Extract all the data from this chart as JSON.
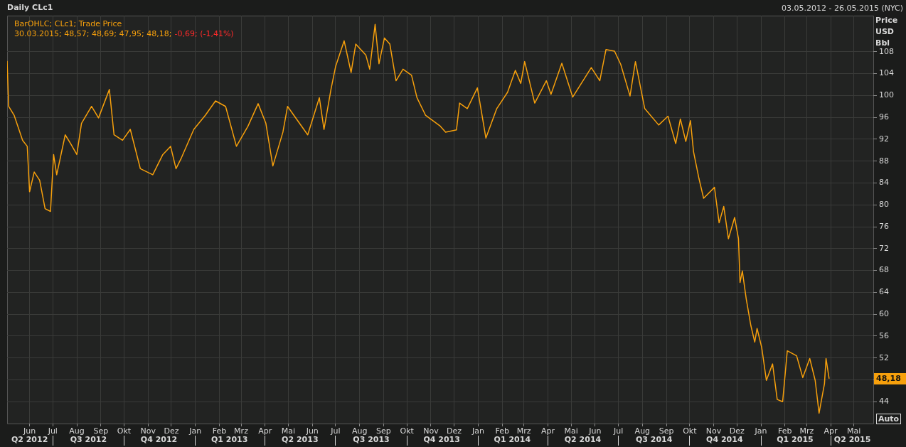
{
  "chart_data": {
    "type": "line",
    "title": "Daily CLc1",
    "subtitle": "03.05.2012 - 26.05.2015 (NYC)",
    "ylabel": "Price USD Bbl",
    "annotations": [
      "BarOHLC; CLc1; Trade Price",
      "30.03.2015; 48,57; 48,69; 47,95; 48,18;",
      "-0,69; (-1,41%)",
      "Auto",
      "48,18"
    ],
    "x": [
      "2012-05-03",
      "2012-05-05",
      "2012-05-12",
      "2012-05-23",
      "2012-05-29",
      "2012-06-01",
      "2012-06-07",
      "2012-06-14",
      "2012-06-21",
      "2012-06-28",
      "2012-07-02",
      "2012-07-06",
      "2012-07-17",
      "2012-07-24",
      "2012-08-01",
      "2012-08-07",
      "2012-08-20",
      "2012-08-29",
      "2012-09-12",
      "2012-09-18",
      "2012-09-29",
      "2012-10-09",
      "2012-10-22",
      "2012-11-07",
      "2012-11-20",
      "2012-11-30",
      "2012-12-07",
      "2012-12-14",
      "2012-12-30",
      "2013-01-14",
      "2013-01-27",
      "2013-02-09",
      "2013-02-23",
      "2013-03-10",
      "2013-03-23",
      "2013-04-02",
      "2013-04-11",
      "2013-04-24",
      "2013-04-30",
      "2013-05-13",
      "2013-05-26",
      "2013-06-10",
      "2013-06-16",
      "2013-06-25",
      "2013-07-01",
      "2013-07-12",
      "2013-07-21",
      "2013-07-27",
      "2013-08-09",
      "2013-08-14",
      "2013-08-21",
      "2013-08-26",
      "2013-09-02",
      "2013-09-09",
      "2013-09-17",
      "2013-09-26",
      "2013-10-07",
      "2013-10-14",
      "2013-10-25",
      "2013-11-13",
      "2013-11-20",
      "2013-12-04",
      "2013-12-08",
      "2013-12-18",
      "2013-12-31",
      "2014-01-11",
      "2014-01-25",
      "2014-02-08",
      "2014-02-18",
      "2014-02-25",
      "2014-03-02",
      "2014-03-15",
      "2014-03-30",
      "2014-04-05",
      "2014-04-19",
      "2014-05-03",
      "2014-05-27",
      "2014-06-07",
      "2014-06-15",
      "2014-06-26",
      "2014-07-04",
      "2014-07-16",
      "2014-07-23",
      "2014-08-04",
      "2014-08-22",
      "2014-09-03",
      "2014-09-13",
      "2014-09-19",
      "2014-09-26",
      "2014-10-02",
      "2014-10-06",
      "2014-10-13",
      "2014-10-19",
      "2014-11-02",
      "2014-11-08",
      "2014-11-14",
      "2014-11-20",
      "2014-11-28",
      "2014-12-03",
      "2014-12-05",
      "2014-12-08",
      "2014-12-13",
      "2014-12-19",
      "2014-12-24",
      "2014-12-27",
      "2015-01-02",
      "2015-01-08",
      "2015-01-16",
      "2015-01-22",
      "2015-01-29",
      "2015-02-04",
      "2015-02-16",
      "2015-02-24",
      "2015-03-05",
      "2015-03-12",
      "2015-03-17",
      "2015-03-24",
      "2015-03-26",
      "2015-03-30"
    ],
    "series": [
      {
        "color": "#f7a00c",
        "values": [
          106.3,
          98,
          96.4,
          91.8,
          90.7,
          82.4,
          86,
          84.5,
          79.3,
          78.8,
          89.2,
          85.5,
          92.8,
          91.2,
          89.2,
          94.9,
          98,
          95.9,
          101.1,
          92.8,
          91.8,
          93.8,
          86.6,
          85.5,
          89.2,
          90.7,
          86.6,
          88.6,
          93.8,
          96.4,
          99,
          98,
          90.7,
          94.4,
          98.5,
          94.9,
          87.1,
          93.3,
          98,
          95.4,
          92.8,
          99.6,
          93.8,
          101.1,
          105.3,
          110,
          104.2,
          109.4,
          107.4,
          104.8,
          113,
          105.8,
          110.5,
          109.4,
          102.7,
          104.8,
          103.7,
          99.6,
          96.4,
          94.4,
          93.3,
          93.7,
          98.6,
          97.6,
          101.4,
          92.2,
          97.6,
          100.6,
          104.6,
          102.2,
          106.2,
          98.6,
          102.7,
          100.2,
          105.9,
          99.7,
          105.1,
          102.7,
          108.4,
          108.1,
          105.7,
          99.9,
          106.2,
          97.6,
          94.6,
          96.2,
          91.2,
          95.7,
          91.6,
          95.4,
          89.7,
          84.8,
          81.2,
          83.2,
          76.7,
          79.7,
          73.8,
          77.7,
          73.8,
          65.8,
          67.9,
          62.8,
          57.9,
          54.9,
          57.4,
          53.9,
          47.9,
          50.9,
          44.4,
          44,
          53.3,
          52.4,
          48.4,
          51.9,
          47.9,
          41.9,
          47.3,
          51.9,
          48.2
        ]
      }
    ],
    "xlim": [
      "2012-05-03",
      "2015-05-26"
    ],
    "xticks": [
      {
        "value": "2012-06-01",
        "label": "Jun"
      },
      {
        "value": "2012-07-01",
        "label": "Jul"
      },
      {
        "value": "2012-08-01",
        "label": "Aug"
      },
      {
        "value": "2012-09-01",
        "label": "Sep"
      },
      {
        "value": "2012-10-01",
        "label": "Okt"
      },
      {
        "value": "2012-11-01",
        "label": "Nov"
      },
      {
        "value": "2012-12-01",
        "label": "Dez"
      },
      {
        "value": "2013-01-01",
        "label": "Jan"
      },
      {
        "value": "2013-02-01",
        "label": "Feb"
      },
      {
        "value": "2013-03-01",
        "label": "Mrz"
      },
      {
        "value": "2013-04-01",
        "label": "Apr"
      },
      {
        "value": "2013-05-01",
        "label": "Mai"
      },
      {
        "value": "2013-06-01",
        "label": "Jun"
      },
      {
        "value": "2013-07-01",
        "label": "Jul"
      },
      {
        "value": "2013-08-01",
        "label": "Aug"
      },
      {
        "value": "2013-09-01",
        "label": "Sep"
      },
      {
        "value": "2013-10-01",
        "label": "Okt"
      },
      {
        "value": "2013-11-01",
        "label": "Nov"
      },
      {
        "value": "2013-12-01",
        "label": "Dez"
      },
      {
        "value": "2014-01-01",
        "label": "Jan"
      },
      {
        "value": "2014-02-01",
        "label": "Feb"
      },
      {
        "value": "2014-03-01",
        "label": "Mrz"
      },
      {
        "value": "2014-04-01",
        "label": "Apr"
      },
      {
        "value": "2014-05-01",
        "label": "Mai"
      },
      {
        "value": "2014-06-01",
        "label": "Jun"
      },
      {
        "value": "2014-07-01",
        "label": "Jul"
      },
      {
        "value": "2014-08-01",
        "label": "Aug"
      },
      {
        "value": "2014-09-01",
        "label": "Sep"
      },
      {
        "value": "2014-10-01",
        "label": "Okt"
      },
      {
        "value": "2014-11-01",
        "label": "Nov"
      },
      {
        "value": "2014-12-01",
        "label": "Dez"
      },
      {
        "value": "2015-01-01",
        "label": "Jan"
      },
      {
        "value": "2015-02-01",
        "label": "Feb"
      },
      {
        "value": "2015-03-01",
        "label": "Mrz"
      },
      {
        "value": "2015-04-01",
        "label": "Apr"
      },
      {
        "value": "2015-05-01",
        "label": "Mai"
      }
    ],
    "x2lim": [
      "2012-05-03",
      "2015-05-26"
    ],
    "x2ticks": [
      {
        "value": "2012-06-01",
        "label": "Q2 2012"
      },
      {
        "value": "2012-07-01",
        "label": null
      },
      {
        "value": "2012-08-16",
        "label": "Q3 2012"
      },
      {
        "value": "2012-10-01",
        "label": null
      },
      {
        "value": "2012-11-15",
        "label": "Q4 2012"
      },
      {
        "value": "2013-01-01",
        "label": null
      },
      {
        "value": "2013-02-14",
        "label": "Q1 2013"
      },
      {
        "value": "2013-04-01",
        "label": null
      },
      {
        "value": "2013-05-16",
        "label": "Q2 2013"
      },
      {
        "value": "2013-07-01",
        "label": null
      },
      {
        "value": "2013-08-16",
        "label": "Q3 2013"
      },
      {
        "value": "2013-10-01",
        "label": null
      },
      {
        "value": "2013-11-15",
        "label": "Q4 2013"
      },
      {
        "value": "2014-01-01",
        "label": null
      },
      {
        "value": "2014-02-14",
        "label": "Q1 2014"
      },
      {
        "value": "2014-04-01",
        "label": null
      },
      {
        "value": "2014-05-16",
        "label": "Q2 2014"
      },
      {
        "value": "2014-07-01",
        "label": null
      },
      {
        "value": "2014-08-16",
        "label": "Q3 2014"
      },
      {
        "value": "2014-10-01",
        "label": null
      },
      {
        "value": "2014-11-15",
        "label": "Q4 2014"
      },
      {
        "value": "2015-01-01",
        "label": null
      },
      {
        "value": "2015-02-14",
        "label": "Q1 2015"
      },
      {
        "value": "2015-04-01",
        "label": null
      },
      {
        "value": "2015-04-29",
        "label": "Q2 2015"
      }
    ],
    "ylim": [
      40,
      114.6
    ],
    "yticks": [
      44,
      {
        "value": 48,
        "label": null
      },
      52,
      56,
      60,
      64,
      68,
      72,
      76,
      80,
      84,
      88,
      92,
      96,
      100,
      104,
      108
    ],
    "grid": true,
    "marker": "none",
    "line_style": "solid"
  }
}
